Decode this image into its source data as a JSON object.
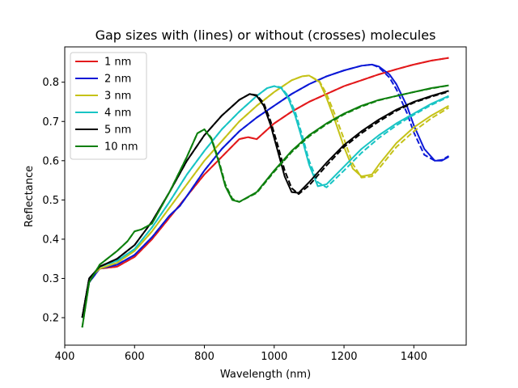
{
  "chart_data": {
    "type": "line",
    "title": "Gap sizes with (lines) or without (crosses) molecules",
    "xlabel": "Wavelength (nm)",
    "ylabel": "Reflectance",
    "xlim": [
      400,
      1550
    ],
    "ylim": [
      0.13,
      0.89
    ],
    "xticks": [
      400,
      600,
      800,
      1000,
      1200,
      1400
    ],
    "yticks": [
      0.2,
      0.3,
      0.4,
      0.5,
      0.6,
      0.7,
      0.8
    ],
    "grid": false,
    "legend_position": "top-left",
    "series": [
      {
        "name": "1 nm",
        "color": "#e31a1c",
        "x": [
          450,
          470,
          500,
          550,
          600,
          650,
          700,
          750,
          800,
          850,
          900,
          925,
          950,
          975,
          1000,
          1050,
          1100,
          1150,
          1200,
          1250,
          1300,
          1350,
          1400,
          1450,
          1500
        ],
        "y": [
          0.2,
          0.3,
          0.325,
          0.33,
          0.355,
          0.4,
          0.455,
          0.51,
          0.565,
          0.61,
          0.655,
          0.66,
          0.655,
          0.675,
          0.695,
          0.725,
          0.75,
          0.77,
          0.79,
          0.805,
          0.82,
          0.833,
          0.845,
          0.855,
          0.862
        ],
        "y_dashed": [
          0.2,
          0.3,
          0.325,
          0.33,
          0.355,
          0.4,
          0.455,
          0.51,
          0.565,
          0.61,
          0.655,
          0.66,
          0.655,
          0.675,
          0.695,
          0.725,
          0.75,
          0.77,
          0.79,
          0.805,
          0.82,
          0.833,
          0.845,
          0.855,
          0.862
        ]
      },
      {
        "name": "2 nm",
        "color": "#0b18d6",
        "x": [
          450,
          470,
          500,
          550,
          600,
          650,
          700,
          730,
          750,
          800,
          850,
          900,
          950,
          1000,
          1050,
          1100,
          1150,
          1200,
          1250,
          1280,
          1300,
          1330,
          1350,
          1380,
          1400,
          1430,
          1460,
          1480,
          1500
        ],
        "y": [
          0.2,
          0.29,
          0.325,
          0.335,
          0.36,
          0.405,
          0.46,
          0.485,
          0.51,
          0.575,
          0.63,
          0.675,
          0.71,
          0.74,
          0.77,
          0.795,
          0.815,
          0.83,
          0.842,
          0.845,
          0.84,
          0.82,
          0.795,
          0.74,
          0.69,
          0.63,
          0.6,
          0.6,
          0.61
        ],
        "y_dashed": [
          0.2,
          0.29,
          0.325,
          0.335,
          0.36,
          0.405,
          0.46,
          0.485,
          0.51,
          0.575,
          0.63,
          0.675,
          0.71,
          0.74,
          0.77,
          0.795,
          0.815,
          0.83,
          0.842,
          0.845,
          0.838,
          0.812,
          0.782,
          0.722,
          0.672,
          0.615,
          0.6,
          0.602,
          0.612
        ]
      },
      {
        "name": "3 nm",
        "color": "#c5c218",
        "x": [
          450,
          470,
          500,
          550,
          600,
          650,
          700,
          750,
          800,
          850,
          900,
          950,
          1000,
          1050,
          1080,
          1100,
          1130,
          1150,
          1175,
          1200,
          1225,
          1250,
          1280,
          1300,
          1350,
          1400,
          1450,
          1500
        ],
        "y": [
          0.2,
          0.3,
          0.325,
          0.34,
          0.37,
          0.42,
          0.48,
          0.54,
          0.6,
          0.65,
          0.7,
          0.74,
          0.775,
          0.805,
          0.815,
          0.817,
          0.8,
          0.76,
          0.7,
          0.635,
          0.58,
          0.56,
          0.565,
          0.59,
          0.645,
          0.685,
          0.715,
          0.74
        ],
        "y_dashed": [
          0.2,
          0.3,
          0.325,
          0.34,
          0.37,
          0.42,
          0.48,
          0.54,
          0.6,
          0.65,
          0.7,
          0.74,
          0.775,
          0.805,
          0.815,
          0.817,
          0.802,
          0.77,
          0.715,
          0.655,
          0.592,
          0.557,
          0.56,
          0.58,
          0.635,
          0.675,
          0.708,
          0.735
        ]
      },
      {
        "name": "4 nm",
        "color": "#18c4c4",
        "x": [
          450,
          470,
          500,
          550,
          600,
          650,
          700,
          750,
          800,
          850,
          900,
          950,
          980,
          1000,
          1020,
          1040,
          1060,
          1080,
          1100,
          1125,
          1150,
          1200,
          1250,
          1300,
          1350,
          1400,
          1450,
          1500
        ],
        "y": [
          0.2,
          0.3,
          0.33,
          0.345,
          0.375,
          0.43,
          0.495,
          0.565,
          0.625,
          0.68,
          0.725,
          0.765,
          0.785,
          0.79,
          0.785,
          0.76,
          0.715,
          0.655,
          0.59,
          0.535,
          0.54,
          0.585,
          0.63,
          0.665,
          0.695,
          0.72,
          0.745,
          0.765
        ],
        "y_dashed": [
          0.2,
          0.3,
          0.33,
          0.345,
          0.375,
          0.43,
          0.495,
          0.565,
          0.625,
          0.68,
          0.725,
          0.765,
          0.785,
          0.79,
          0.787,
          0.765,
          0.725,
          0.665,
          0.6,
          0.545,
          0.532,
          0.575,
          0.62,
          0.658,
          0.69,
          0.717,
          0.742,
          0.763
        ]
      },
      {
        "name": "5 nm",
        "color": "#000000",
        "x": [
          450,
          470,
          500,
          550,
          600,
          650,
          700,
          750,
          800,
          850,
          900,
          930,
          950,
          970,
          990,
          1010,
          1030,
          1050,
          1070,
          1100,
          1150,
          1200,
          1250,
          1300,
          1350,
          1400,
          1450,
          1500
        ],
        "y": [
          0.2,
          0.3,
          0.33,
          0.35,
          0.385,
          0.445,
          0.52,
          0.6,
          0.665,
          0.715,
          0.755,
          0.77,
          0.765,
          0.74,
          0.69,
          0.625,
          0.56,
          0.52,
          0.518,
          0.545,
          0.595,
          0.64,
          0.675,
          0.705,
          0.73,
          0.75,
          0.765,
          0.778
        ],
        "y_dashed": [
          0.2,
          0.3,
          0.33,
          0.35,
          0.385,
          0.445,
          0.52,
          0.6,
          0.665,
          0.715,
          0.755,
          0.77,
          0.767,
          0.747,
          0.7,
          0.64,
          0.575,
          0.53,
          0.515,
          0.537,
          0.588,
          0.635,
          0.67,
          0.7,
          0.727,
          0.748,
          0.763,
          0.776
        ]
      },
      {
        "name": "10 nm",
        "color": "#0d7f0d",
        "x": [
          450,
          470,
          500,
          550,
          580,
          600,
          620,
          650,
          700,
          750,
          780,
          800,
          820,
          840,
          860,
          880,
          900,
          950,
          1000,
          1050,
          1100,
          1150,
          1200,
          1250,
          1300,
          1350,
          1400,
          1450,
          1500
        ],
        "y": [
          0.175,
          0.29,
          0.335,
          0.37,
          0.395,
          0.42,
          0.425,
          0.44,
          0.52,
          0.61,
          0.67,
          0.68,
          0.655,
          0.6,
          0.535,
          0.5,
          0.495,
          0.52,
          0.575,
          0.625,
          0.665,
          0.695,
          0.72,
          0.74,
          0.755,
          0.765,
          0.775,
          0.785,
          0.792
        ],
        "y_dashed": [
          0.175,
          0.29,
          0.335,
          0.37,
          0.395,
          0.42,
          0.425,
          0.44,
          0.52,
          0.61,
          0.67,
          0.68,
          0.658,
          0.605,
          0.54,
          0.503,
          0.495,
          0.518,
          0.572,
          0.622,
          0.662,
          0.693,
          0.718,
          0.738,
          0.754,
          0.765,
          0.775,
          0.784,
          0.792
        ]
      }
    ]
  }
}
